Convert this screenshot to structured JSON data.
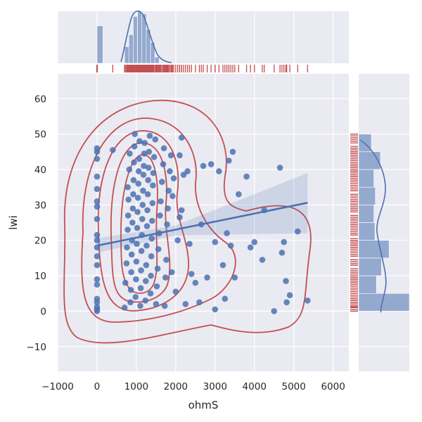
{
  "chart_data": {
    "type": "scatter",
    "title": "",
    "xlabel": "ohmS",
    "ylabel": "lwi",
    "xlim": [
      -1000,
      6400
    ],
    "ylim": [
      -17,
      67
    ],
    "xticks": [
      -1000,
      0,
      1000,
      2000,
      3000,
      4000,
      5000,
      6000
    ],
    "yticks": [
      -10,
      0,
      10,
      20,
      30,
      40,
      50,
      60
    ],
    "grid": true,
    "colors": {
      "background": "#EAEAF2",
      "grid": "#FFFFFF",
      "points": "#4C72B0",
      "regression": "#4C72B0",
      "kde": "#C44E52",
      "rug": "#C44E52",
      "histogram": "#4C72B0"
    },
    "regression": {
      "x": [
        0,
        5350
      ],
      "y": [
        18.5,
        30.6
      ],
      "ci_low_end": 22,
      "ci_high_end": 39
    },
    "marginal_x_hist": {
      "bins": [
        [
          0,
          150,
          0.72
        ],
        [
          700,
          810,
          0.32
        ],
        [
          810,
          920,
          0.55
        ],
        [
          920,
          1030,
          0.9
        ],
        [
          1030,
          1140,
          1.0
        ],
        [
          1140,
          1250,
          0.95
        ],
        [
          1250,
          1360,
          0.65
        ],
        [
          1360,
          1470,
          0.4
        ],
        [
          1470,
          1580,
          0.12
        ]
      ]
    },
    "marginal_y_hist": {
      "bins": [
        [
          0,
          5,
          1.0
        ],
        [
          5,
          10,
          0.35
        ],
        [
          10,
          15,
          0.45
        ],
        [
          15,
          20,
          0.6
        ],
        [
          20,
          25,
          0.32
        ],
        [
          25,
          30,
          0.3
        ],
        [
          30,
          35,
          0.33
        ],
        [
          35,
          40,
          0.3
        ],
        [
          40,
          45,
          0.43
        ],
        [
          45,
          50,
          0.25
        ]
      ]
    },
    "points": [
      {
        "x": 0,
        "y": 0
      },
      {
        "x": 0,
        "y": 0.5
      },
      {
        "x": 0,
        "y": 1.2
      },
      {
        "x": 0,
        "y": 2.5
      },
      {
        "x": 0,
        "y": 3.5
      },
      {
        "x": 0,
        "y": 7.5
      },
      {
        "x": 0,
        "y": 9
      },
      {
        "x": 0,
        "y": 13
      },
      {
        "x": 0,
        "y": 15.5
      },
      {
        "x": 0,
        "y": 18
      },
      {
        "x": 0,
        "y": 20
      },
      {
        "x": 0,
        "y": 21.5
      },
      {
        "x": 0,
        "y": 26
      },
      {
        "x": 0,
        "y": 29.5
      },
      {
        "x": 0,
        "y": 31
      },
      {
        "x": 0,
        "y": 34.5
      },
      {
        "x": 0,
        "y": 38
      },
      {
        "x": 0,
        "y": 43
      },
      {
        "x": 0,
        "y": 45
      },
      {
        "x": 0,
        "y": 46
      },
      {
        "x": 400,
        "y": 45.5
      },
      {
        "x": 700,
        "y": 1
      },
      {
        "x": 720,
        "y": 8
      },
      {
        "x": 750,
        "y": 13.5
      },
      {
        "x": 760,
        "y": 18
      },
      {
        "x": 780,
        "y": 23
      },
      {
        "x": 790,
        "y": 27
      },
      {
        "x": 800,
        "y": 31.5
      },
      {
        "x": 780,
        "y": 35
      },
      {
        "x": 820,
        "y": 40
      },
      {
        "x": 830,
        "y": 44.5
      },
      {
        "x": 850,
        "y": 2.5
      },
      {
        "x": 860,
        "y": 6
      },
      {
        "x": 870,
        "y": 11
      },
      {
        "x": 880,
        "y": 16
      },
      {
        "x": 890,
        "y": 20
      },
      {
        "x": 900,
        "y": 25
      },
      {
        "x": 910,
        "y": 29
      },
      {
        "x": 920,
        "y": 33
      },
      {
        "x": 930,
        "y": 37
      },
      {
        "x": 940,
        "y": 42
      },
      {
        "x": 950,
        "y": 46.5
      },
      {
        "x": 960,
        "y": 50
      },
      {
        "x": 980,
        "y": 4
      },
      {
        "x": 990,
        "y": 9
      },
      {
        "x": 1000,
        "y": 14
      },
      {
        "x": 1010,
        "y": 19
      },
      {
        "x": 1020,
        "y": 23.5
      },
      {
        "x": 1030,
        "y": 28
      },
      {
        "x": 1040,
        "y": 32
      },
      {
        "x": 1050,
        "y": 36
      },
      {
        "x": 1060,
        "y": 39.5
      },
      {
        "x": 1070,
        "y": 43
      },
      {
        "x": 1080,
        "y": 48
      },
      {
        "x": 1100,
        "y": 1.5
      },
      {
        "x": 1110,
        "y": 6.5
      },
      {
        "x": 1120,
        "y": 11.5
      },
      {
        "x": 1130,
        "y": 17
      },
      {
        "x": 1140,
        "y": 21.5
      },
      {
        "x": 1150,
        "y": 26
      },
      {
        "x": 1160,
        "y": 30
      },
      {
        "x": 1170,
        "y": 34
      },
      {
        "x": 1180,
        "y": 38.5
      },
      {
        "x": 1190,
        "y": 41
      },
      {
        "x": 1200,
        "y": 44.5
      },
      {
        "x": 1210,
        "y": 47.5
      },
      {
        "x": 1230,
        "y": 3
      },
      {
        "x": 1240,
        "y": 8.5
      },
      {
        "x": 1250,
        "y": 13
      },
      {
        "x": 1260,
        "y": 18.5
      },
      {
        "x": 1270,
        "y": 24
      },
      {
        "x": 1280,
        "y": 28.5
      },
      {
        "x": 1290,
        "y": 33
      },
      {
        "x": 1300,
        "y": 37
      },
      {
        "x": 1310,
        "y": 40.5
      },
      {
        "x": 1320,
        "y": 45
      },
      {
        "x": 1340,
        "y": 49.5
      },
      {
        "x": 1360,
        "y": 5
      },
      {
        "x": 1370,
        "y": 10
      },
      {
        "x": 1380,
        "y": 15.5
      },
      {
        "x": 1390,
        "y": 20.5
      },
      {
        "x": 1400,
        "y": 25.5
      },
      {
        "x": 1410,
        "y": 30.5
      },
      {
        "x": 1420,
        "y": 35.5
      },
      {
        "x": 1430,
        "y": 39
      },
      {
        "x": 1450,
        "y": 43.5
      },
      {
        "x": 1480,
        "y": 48.5
      },
      {
        "x": 1500,
        "y": 2
      },
      {
        "x": 1520,
        "y": 7
      },
      {
        "x": 1540,
        "y": 12
      },
      {
        "x": 1560,
        "y": 17.5
      },
      {
        "x": 1580,
        "y": 22
      },
      {
        "x": 1600,
        "y": 27
      },
      {
        "x": 1620,
        "y": 31
      },
      {
        "x": 1650,
        "y": 36.5
      },
      {
        "x": 1680,
        "y": 41.5
      },
      {
        "x": 1700,
        "y": 46
      },
      {
        "x": 1720,
        "y": 1.5
      },
      {
        "x": 1740,
        "y": 9.5
      },
      {
        "x": 1760,
        "y": 14.5
      },
      {
        "x": 1780,
        "y": 24.5
      },
      {
        "x": 1800,
        "y": 29
      },
      {
        "x": 1820,
        "y": 34
      },
      {
        "x": 1850,
        "y": 39.5
      },
      {
        "x": 1880,
        "y": 44
      },
      {
        "x": 1900,
        "y": 11
      },
      {
        "x": 1920,
        "y": 32.5
      },
      {
        "x": 1950,
        "y": 37.5
      },
      {
        "x": 2000,
        "y": 5.5
      },
      {
        "x": 2050,
        "y": 20
      },
      {
        "x": 2100,
        "y": 26.5
      },
      {
        "x": 2150,
        "y": 28.5
      },
      {
        "x": 2100,
        "y": 44
      },
      {
        "x": 2150,
        "y": 49
      },
      {
        "x": 2200,
        "y": 38.5
      },
      {
        "x": 2250,
        "y": 2
      },
      {
        "x": 2300,
        "y": 39.5
      },
      {
        "x": 2350,
        "y": 19
      },
      {
        "x": 2400,
        "y": 10.5
      },
      {
        "x": 2500,
        "y": 8
      },
      {
        "x": 2600,
        "y": 2.5
      },
      {
        "x": 2650,
        "y": 24.5
      },
      {
        "x": 2700,
        "y": 41
      },
      {
        "x": 2800,
        "y": 9.5
      },
      {
        "x": 2900,
        "y": 41.5
      },
      {
        "x": 3000,
        "y": 19.5
      },
      {
        "x": 3000,
        "y": 0.5
      },
      {
        "x": 3100,
        "y": 39.5
      },
      {
        "x": 3200,
        "y": 13
      },
      {
        "x": 3250,
        "y": 3.5
      },
      {
        "x": 3300,
        "y": 22
      },
      {
        "x": 3350,
        "y": 42.5
      },
      {
        "x": 3400,
        "y": 18.5
      },
      {
        "x": 3450,
        "y": 45
      },
      {
        "x": 3500,
        "y": 9.5
      },
      {
        "x": 3600,
        "y": 33
      },
      {
        "x": 3800,
        "y": 38
      },
      {
        "x": 3900,
        "y": 18
      },
      {
        "x": 4000,
        "y": 19.5
      },
      {
        "x": 4200,
        "y": 14.5
      },
      {
        "x": 4250,
        "y": 28.5
      },
      {
        "x": 4500,
        "y": 0
      },
      {
        "x": 4650,
        "y": 40.5
      },
      {
        "x": 4700,
        "y": 16.5
      },
      {
        "x": 4750,
        "y": 19.5
      },
      {
        "x": 4800,
        "y": 8.5
      },
      {
        "x": 4820,
        "y": 2.5
      },
      {
        "x": 4900,
        "y": 4.5
      },
      {
        "x": 5100,
        "y": 22.5
      },
      {
        "x": 5350,
        "y": 3
      }
    ]
  }
}
